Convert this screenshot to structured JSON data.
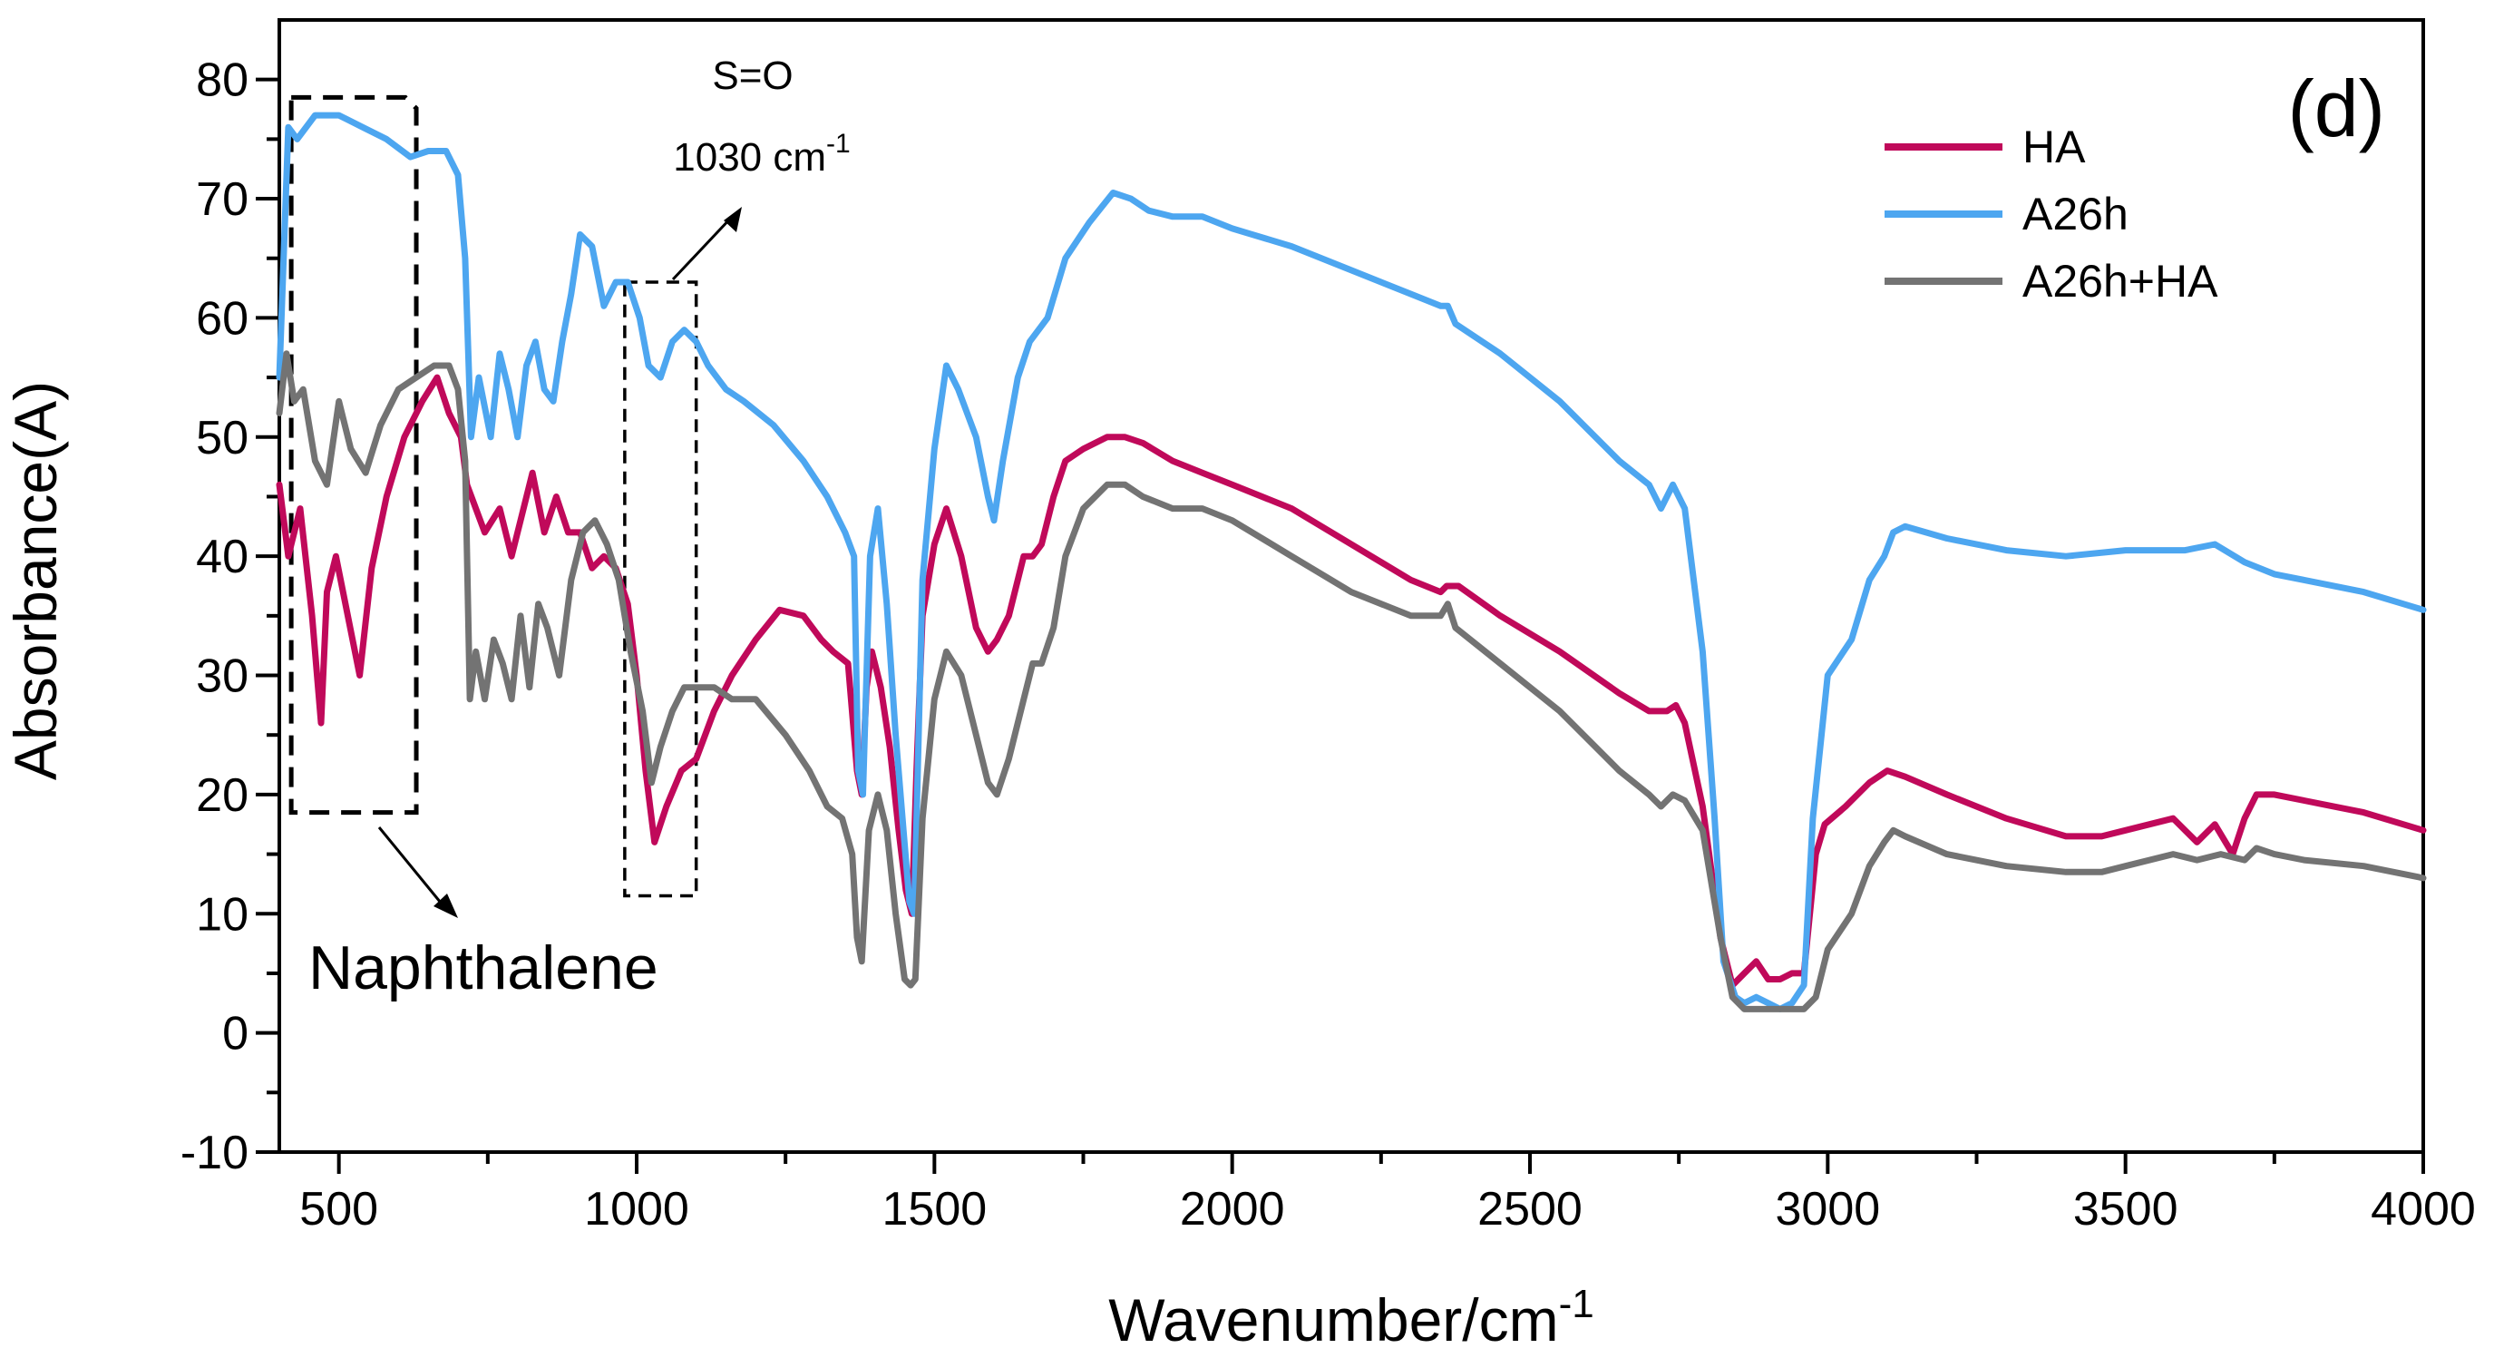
{
  "chart_data": {
    "type": "line",
    "panel_label": "(d)",
    "xlabel": "Wavenumber/cm",
    "xlabel_sup": "-1",
    "ylabel": "Absorbance(A)",
    "xlim": [
      400,
      4000
    ],
    "ylim": [
      -10,
      85
    ],
    "xticks": [
      500,
      1000,
      1500,
      2000,
      2500,
      3000,
      3500,
      4000
    ],
    "yticks": [
      -10,
      0,
      10,
      20,
      30,
      40,
      50,
      60,
      70,
      80
    ],
    "legend_position": "top-right",
    "series": [
      {
        "name": "HA",
        "color": "#c0095a",
        "x": [
          400,
          415,
          435,
          455,
          470,
          480,
          495,
          515,
          535,
          555,
          580,
          610,
          640,
          665,
          685,
          705,
          715,
          730,
          745,
          770,
          790,
          805,
          825,
          845,
          865,
          885,
          905,
          925,
          945,
          965,
          985,
          1000,
          1015,
          1030,
          1050,
          1075,
          1100,
          1130,
          1160,
          1200,
          1240,
          1280,
          1310,
          1330,
          1355,
          1370,
          1378,
          1386,
          1395,
          1410,
          1425,
          1440,
          1452,
          1462,
          1470,
          1480,
          1500,
          1520,
          1545,
          1570,
          1590,
          1605,
          1625,
          1650,
          1665,
          1680,
          1700,
          1720,
          1750,
          1790,
          1820,
          1850,
          1900,
          1950,
          2000,
          2100,
          2200,
          2300,
          2350,
          2360,
          2380,
          2450,
          2550,
          2650,
          2700,
          2730,
          2745,
          2760,
          2790,
          2820,
          2840,
          2860,
          2880,
          2900,
          2920,
          2940,
          2960,
          2980,
          2995,
          3030,
          3070,
          3100,
          3130,
          3200,
          3300,
          3400,
          3460,
          3500,
          3580,
          3620,
          3650,
          3680,
          3700,
          3720,
          3750,
          3800,
          3900,
          4000
        ],
        "y": [
          46,
          40,
          44,
          35,
          26,
          37,
          40,
          35,
          30,
          39,
          45,
          50,
          53,
          55,
          52,
          50,
          46,
          44,
          42,
          44,
          40,
          43,
          47,
          42,
          45,
          42,
          42,
          39,
          40,
          39,
          36,
          30,
          22,
          16,
          19,
          22,
          23,
          27,
          30,
          33,
          35.5,
          35,
          33,
          32,
          31,
          22,
          20,
          29,
          32,
          29,
          24,
          17,
          12,
          10,
          22,
          35,
          41,
          44,
          40,
          34,
          32,
          33,
          35,
          40,
          40,
          41,
          45,
          48,
          49,
          50,
          50,
          49.5,
          48,
          47,
          46,
          44,
          41,
          38,
          37,
          37.5,
          37.5,
          35,
          32,
          28.5,
          27,
          27,
          27.5,
          26,
          19,
          8,
          4,
          5,
          6,
          4.5,
          4.5,
          5,
          5,
          15,
          17.5,
          19,
          21,
          22,
          21.5,
          20,
          18,
          16.5,
          16.5,
          17,
          18,
          16,
          17.5,
          15,
          18,
          20,
          20,
          19.5,
          18.5,
          17
        ]
      },
      {
        "name": "A26h",
        "color": "#4da6f0",
        "x": [
          400,
          415,
          430,
          460,
          500,
          540,
          580,
          620,
          650,
          680,
          700,
          712,
          722,
          735,
          755,
          770,
          785,
          800,
          815,
          830,
          845,
          860,
          875,
          890,
          905,
          925,
          945,
          965,
          985,
          1005,
          1020,
          1040,
          1060,
          1080,
          1100,
          1120,
          1150,
          1180,
          1230,
          1280,
          1320,
          1350,
          1365,
          1372,
          1380,
          1392,
          1405,
          1420,
          1435,
          1448,
          1458,
          1466,
          1480,
          1500,
          1520,
          1540,
          1570,
          1590,
          1600,
          1615,
          1640,
          1660,
          1690,
          1720,
          1760,
          1800,
          1830,
          1860,
          1900,
          1950,
          2000,
          2100,
          2200,
          2300,
          2350,
          2362,
          2375,
          2450,
          2550,
          2650,
          2700,
          2720,
          2740,
          2760,
          2790,
          2810,
          2825,
          2845,
          2860,
          2880,
          2900,
          2920,
          2940,
          2960,
          2975,
          3000,
          3040,
          3070,
          3095,
          3110,
          3130,
          3200,
          3300,
          3400,
          3500,
          3600,
          3650,
          3700,
          3750,
          3800,
          3900,
          4000
        ],
        "y": [
          55,
          76,
          75,
          77,
          77,
          76,
          75,
          73.5,
          74,
          74,
          72,
          65,
          50,
          55,
          50,
          57,
          54,
          50,
          56,
          58,
          54,
          53,
          58,
          62,
          67,
          66,
          61,
          63,
          63,
          60,
          56,
          55,
          58,
          59,
          58,
          56,
          54,
          53,
          51,
          48,
          45,
          42,
          40,
          22,
          20,
          40,
          44,
          36,
          25,
          17,
          11,
          10,
          38,
          49,
          56,
          54,
          50,
          45,
          43,
          48,
          55,
          58,
          60,
          65,
          68,
          70.5,
          70,
          69,
          68.5,
          68.5,
          67.5,
          66,
          64,
          62,
          61,
          61,
          59.5,
          57,
          53,
          48,
          46,
          44,
          46,
          44,
          32,
          18,
          6,
          3,
          2.5,
          3,
          2.5,
          2,
          2.5,
          4,
          18,
          30,
          33,
          38,
          40,
          42,
          42.5,
          41.5,
          40.5,
          40,
          40.5,
          40.5,
          41,
          39.5,
          38.5,
          38,
          37,
          35.5
        ]
      },
      {
        "name": "A26h+HA",
        "color": "#737373",
        "x": [
          400,
          412,
          425,
          440,
          460,
          480,
          500,
          520,
          545,
          570,
          600,
          630,
          660,
          685,
          700,
          712,
          720,
          730,
          745,
          760,
          775,
          790,
          805,
          820,
          835,
          850,
          870,
          890,
          910,
          930,
          950,
          970,
          990,
          1010,
          1025,
          1040,
          1060,
          1080,
          1100,
          1130,
          1160,
          1200,
          1250,
          1290,
          1320,
          1345,
          1362,
          1370,
          1378,
          1390,
          1405,
          1420,
          1435,
          1450,
          1460,
          1468,
          1480,
          1500,
          1520,
          1545,
          1570,
          1590,
          1605,
          1625,
          1650,
          1665,
          1680,
          1700,
          1720,
          1750,
          1790,
          1820,
          1850,
          1900,
          1950,
          2000,
          2100,
          2200,
          2300,
          2350,
          2362,
          2375,
          2450,
          2550,
          2650,
          2700,
          2720,
          2740,
          2760,
          2790,
          2820,
          2840,
          2860,
          2880,
          2900,
          2920,
          2940,
          2960,
          2980,
          3000,
          3040,
          3070,
          3095,
          3110,
          3130,
          3200,
          3300,
          3400,
          3460,
          3500,
          3580,
          3620,
          3660,
          3700,
          3720,
          3750,
          3800,
          3900,
          4000
        ],
        "y": [
          52,
          57,
          53,
          54,
          48,
          46,
          53,
          49,
          47,
          51,
          54,
          55,
          56,
          56,
          54,
          48,
          28,
          32,
          28,
          33,
          31,
          28,
          35,
          29,
          36,
          34,
          30,
          38,
          42,
          43,
          41,
          38,
          32,
          27,
          21,
          24,
          27,
          29,
          29,
          29,
          28,
          28,
          25,
          22,
          19,
          18,
          15,
          8,
          6,
          17,
          20,
          17,
          10,
          4.5,
          4,
          4.5,
          18,
          28,
          32,
          30,
          25,
          21,
          20,
          23,
          28,
          31,
          31,
          34,
          40,
          44,
          46,
          46,
          45,
          44,
          44,
          43,
          40,
          37,
          35,
          35,
          36,
          34,
          31,
          27,
          22,
          20,
          19,
          20,
          19.5,
          17,
          8,
          3,
          2,
          2,
          2,
          2,
          2,
          2,
          3,
          7,
          10,
          14,
          16,
          17,
          16.5,
          15,
          14,
          13.5,
          13.5,
          14,
          15,
          14.5,
          15,
          14.5,
          15.5,
          15,
          14.5,
          14,
          13
        ]
      }
    ],
    "annotations": [
      {
        "type": "box",
        "x": [
          420,
          630
        ],
        "y": [
          18.5,
          78.5
        ],
        "label": "Naphthalene",
        "label_position": "bottom-left"
      },
      {
        "type": "box",
        "x": [
          980,
          1100
        ],
        "y": [
          11.5,
          63
        ],
        "label": "S=O",
        "label_line2": "1030 cm",
        "label_line2_sup": "-1",
        "label_position": "top"
      }
    ]
  }
}
